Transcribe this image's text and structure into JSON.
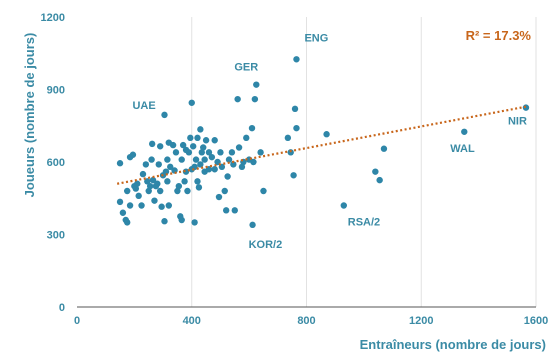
{
  "chart_data": {
    "type": "scatter",
    "xlabel": "Entraîneurs (nombre de jours)",
    "ylabel": "Joueurs (nombre de jours)",
    "xlim": [
      0,
      1600
    ],
    "ylim": [
      0,
      1200
    ],
    "x_ticks": [
      0,
      400,
      800,
      1200,
      1600
    ],
    "y_ticks": [
      0,
      300,
      600,
      900,
      1200
    ],
    "grid": "vertical",
    "point_color": "#2e86a8",
    "trend_color": "#c8661b",
    "trendline": {
      "type": "linear",
      "r2_label": "R² = 17.3%",
      "start": [
        140,
        510
      ],
      "end": [
        1570,
        830
      ]
    },
    "labeled_points": [
      {
        "label": "ENG",
        "x": 765,
        "y": 1025
      },
      {
        "label": "GER",
        "x": 625,
        "y": 920
      },
      {
        "label": "UAE",
        "x": 305,
        "y": 795
      },
      {
        "label": "NIR",
        "x": 1565,
        "y": 825
      },
      {
        "label": "WAL",
        "x": 1350,
        "y": 725
      },
      {
        "label": "RSA/2",
        "x": 930,
        "y": 420
      },
      {
        "label": "KOR/2",
        "x": 612,
        "y": 340
      }
    ],
    "points": [
      {
        "x": 150,
        "y": 595
      },
      {
        "x": 150,
        "y": 435
      },
      {
        "x": 160,
        "y": 390
      },
      {
        "x": 170,
        "y": 360
      },
      {
        "x": 175,
        "y": 350
      },
      {
        "x": 175,
        "y": 480
      },
      {
        "x": 185,
        "y": 420
      },
      {
        "x": 185,
        "y": 620
      },
      {
        "x": 195,
        "y": 630
      },
      {
        "x": 200,
        "y": 500
      },
      {
        "x": 205,
        "y": 490
      },
      {
        "x": 210,
        "y": 510
      },
      {
        "x": 215,
        "y": 460
      },
      {
        "x": 225,
        "y": 420
      },
      {
        "x": 230,
        "y": 550
      },
      {
        "x": 240,
        "y": 590
      },
      {
        "x": 245,
        "y": 520
      },
      {
        "x": 250,
        "y": 480
      },
      {
        "x": 255,
        "y": 500
      },
      {
        "x": 260,
        "y": 610
      },
      {
        "x": 262,
        "y": 675
      },
      {
        "x": 265,
        "y": 525
      },
      {
        "x": 270,
        "y": 440
      },
      {
        "x": 275,
        "y": 500
      },
      {
        "x": 280,
        "y": 510
      },
      {
        "x": 285,
        "y": 590
      },
      {
        "x": 290,
        "y": 480
      },
      {
        "x": 290,
        "y": 665
      },
      {
        "x": 295,
        "y": 415
      },
      {
        "x": 300,
        "y": 545
      },
      {
        "x": 305,
        "y": 355
      },
      {
        "x": 310,
        "y": 560
      },
      {
        "x": 315,
        "y": 520
      },
      {
        "x": 315,
        "y": 610
      },
      {
        "x": 320,
        "y": 420
      },
      {
        "x": 320,
        "y": 680
      },
      {
        "x": 325,
        "y": 580
      },
      {
        "x": 335,
        "y": 670
      },
      {
        "x": 340,
        "y": 565
      },
      {
        "x": 345,
        "y": 640
      },
      {
        "x": 350,
        "y": 480
      },
      {
        "x": 355,
        "y": 500
      },
      {
        "x": 360,
        "y": 375
      },
      {
        "x": 365,
        "y": 360
      },
      {
        "x": 365,
        "y": 610
      },
      {
        "x": 370,
        "y": 670
      },
      {
        "x": 375,
        "y": 520
      },
      {
        "x": 380,
        "y": 560
      },
      {
        "x": 380,
        "y": 650
      },
      {
        "x": 385,
        "y": 480
      },
      {
        "x": 390,
        "y": 640
      },
      {
        "x": 395,
        "y": 700
      },
      {
        "x": 400,
        "y": 570
      },
      {
        "x": 400,
        "y": 845
      },
      {
        "x": 405,
        "y": 665
      },
      {
        "x": 410,
        "y": 350
      },
      {
        "x": 410,
        "y": 580
      },
      {
        "x": 415,
        "y": 610
      },
      {
        "x": 420,
        "y": 520
      },
      {
        "x": 420,
        "y": 700
      },
      {
        "x": 425,
        "y": 495
      },
      {
        "x": 430,
        "y": 590
      },
      {
        "x": 430,
        "y": 735
      },
      {
        "x": 435,
        "y": 640
      },
      {
        "x": 440,
        "y": 660
      },
      {
        "x": 445,
        "y": 560
      },
      {
        "x": 445,
        "y": 610
      },
      {
        "x": 450,
        "y": 690
      },
      {
        "x": 460,
        "y": 640
      },
      {
        "x": 460,
        "y": 570
      },
      {
        "x": 470,
        "y": 620
      },
      {
        "x": 480,
        "y": 570
      },
      {
        "x": 480,
        "y": 690
      },
      {
        "x": 490,
        "y": 600
      },
      {
        "x": 495,
        "y": 455
      },
      {
        "x": 500,
        "y": 640
      },
      {
        "x": 505,
        "y": 580
      },
      {
        "x": 515,
        "y": 480
      },
      {
        "x": 520,
        "y": 400
      },
      {
        "x": 525,
        "y": 540
      },
      {
        "x": 530,
        "y": 610
      },
      {
        "x": 540,
        "y": 640
      },
      {
        "x": 545,
        "y": 590
      },
      {
        "x": 550,
        "y": 400
      },
      {
        "x": 560,
        "y": 860
      },
      {
        "x": 565,
        "y": 660
      },
      {
        "x": 575,
        "y": 580
      },
      {
        "x": 580,
        "y": 600
      },
      {
        "x": 590,
        "y": 700
      },
      {
        "x": 600,
        "y": 610
      },
      {
        "x": 610,
        "y": 740
      },
      {
        "x": 615,
        "y": 600
      },
      {
        "x": 620,
        "y": 860
      },
      {
        "x": 640,
        "y": 640
      },
      {
        "x": 650,
        "y": 480
      },
      {
        "x": 735,
        "y": 700
      },
      {
        "x": 745,
        "y": 640
      },
      {
        "x": 755,
        "y": 545
      },
      {
        "x": 760,
        "y": 820
      },
      {
        "x": 765,
        "y": 740
      },
      {
        "x": 870,
        "y": 715
      },
      {
        "x": 1040,
        "y": 560
      },
      {
        "x": 1055,
        "y": 525
      },
      {
        "x": 1070,
        "y": 655
      },
      {
        "x": 765,
        "y": 1025
      },
      {
        "x": 625,
        "y": 920
      },
      {
        "x": 305,
        "y": 795
      },
      {
        "x": 1565,
        "y": 825
      },
      {
        "x": 1350,
        "y": 725
      },
      {
        "x": 930,
        "y": 420
      },
      {
        "x": 612,
        "y": 340
      }
    ]
  }
}
